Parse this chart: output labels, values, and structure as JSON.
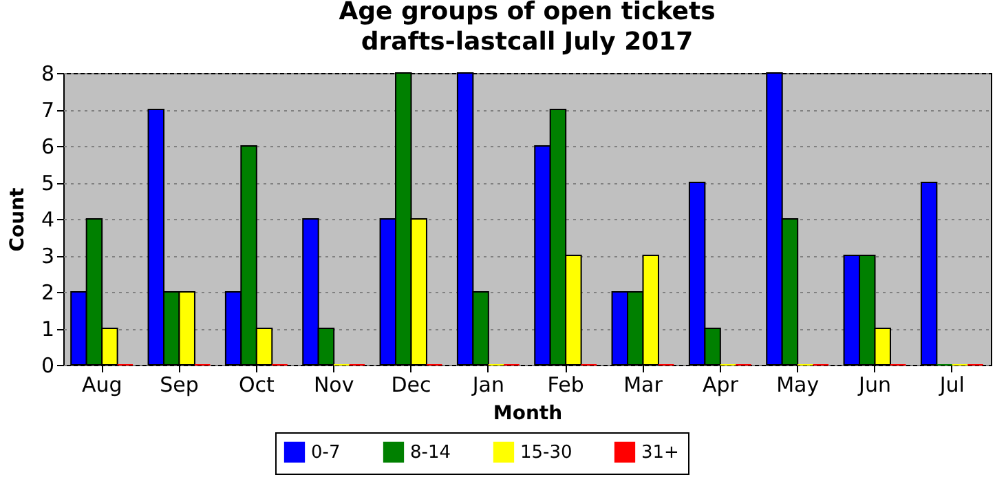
{
  "chart_data": {
    "type": "bar",
    "title": "Age groups of open tickets\ndrafts-lastcall July 2017",
    "xlabel": "Month",
    "ylabel": "Count",
    "categories": [
      "Aug",
      "Sep",
      "Oct",
      "Nov",
      "Dec",
      "Jan",
      "Feb",
      "Mar",
      "Apr",
      "May",
      "Jun",
      "Jul"
    ],
    "series": [
      {
        "name": "0-7",
        "color": "#0000ff",
        "values": [
          2,
          7,
          2,
          4,
          4,
          8,
          6,
          2,
          5,
          8,
          3,
          5
        ]
      },
      {
        "name": "8-14",
        "color": "#008000",
        "values": [
          4,
          2,
          6,
          1,
          8,
          2,
          7,
          2,
          1,
          4,
          3,
          0
        ]
      },
      {
        "name": "15-30",
        "color": "#ffff00",
        "values": [
          1,
          2,
          1,
          0,
          4,
          0,
          3,
          3,
          0,
          0,
          1,
          0
        ]
      },
      {
        "name": "31+",
        "color": "#ff0000",
        "values": [
          0,
          0,
          0,
          0,
          0,
          0,
          0,
          0,
          0,
          0,
          0,
          0
        ]
      }
    ],
    "ylim": [
      0,
      8
    ],
    "yticks": [
      0,
      1,
      2,
      3,
      4,
      5,
      6,
      7,
      8
    ],
    "grid": "y",
    "legend": "bottom"
  }
}
